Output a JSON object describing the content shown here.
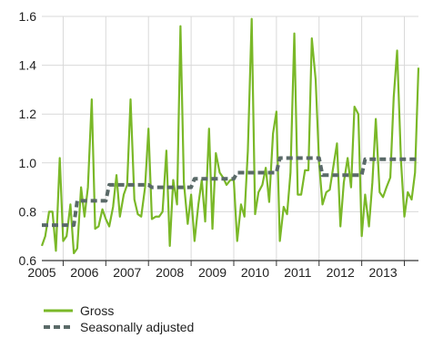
{
  "chart_data": {
    "type": "line",
    "title": "",
    "xlabel": "",
    "ylabel": "",
    "ylim": [
      0.6,
      1.6
    ],
    "y_ticks": [
      0.6,
      0.8,
      1.0,
      1.2,
      1.4,
      1.6
    ],
    "y_tick_labels": [
      "0.6",
      "0.8",
      "1.0",
      "1.2",
      "1.4",
      "1.6"
    ],
    "x_range": [
      2005,
      2013.83
    ],
    "x_ticks": [
      2005,
      2006,
      2007,
      2008,
      2009,
      2010,
      2011,
      2012,
      2013
    ],
    "x_tick_labels": [
      "2005",
      "2006",
      "2007",
      "2008",
      "2009",
      "2010",
      "2011",
      "2012",
      "2013"
    ],
    "grid": true,
    "legend_position": "bottom-left",
    "series": [
      {
        "name": "Gross",
        "color": "#7ab828",
        "style": "solid",
        "x": [
          2005.0,
          2005.08,
          2005.17,
          2005.25,
          2005.33,
          2005.42,
          2005.5,
          2005.58,
          2005.67,
          2005.75,
          2005.83,
          2005.92,
          2006.0,
          2006.08,
          2006.17,
          2006.25,
          2006.33,
          2006.42,
          2006.5,
          2006.58,
          2006.67,
          2006.75,
          2006.83,
          2006.92,
          2007.0,
          2007.08,
          2007.17,
          2007.25,
          2007.33,
          2007.42,
          2007.5,
          2007.58,
          2007.67,
          2007.75,
          2007.83,
          2007.92,
          2008.0,
          2008.08,
          2008.17,
          2008.25,
          2008.33,
          2008.42,
          2008.5,
          2008.58,
          2008.67,
          2008.75,
          2008.83,
          2008.92,
          2009.0,
          2009.08,
          2009.17,
          2009.25,
          2009.33,
          2009.42,
          2009.5,
          2009.58,
          2009.67,
          2009.75,
          2009.83,
          2009.92,
          2010.0,
          2010.08,
          2010.17,
          2010.25,
          2010.33,
          2010.42,
          2010.5,
          2010.58,
          2010.67,
          2010.75,
          2010.83,
          2010.92,
          2011.0,
          2011.08,
          2011.17,
          2011.25,
          2011.33,
          2011.42,
          2011.5,
          2011.58,
          2011.67,
          2011.75,
          2011.83,
          2011.92,
          2012.0,
          2012.08,
          2012.17,
          2012.25,
          2012.33,
          2012.42,
          2012.5,
          2012.58,
          2012.67,
          2012.75,
          2012.83,
          2012.92,
          2013.0,
          2013.08,
          2013.17,
          2013.25,
          2013.33,
          2013.42,
          2013.5,
          2013.58,
          2013.67,
          2013.75,
          2013.83
        ],
        "y": [
          0.66,
          0.7,
          0.8,
          0.8,
          0.64,
          1.02,
          0.68,
          0.7,
          0.83,
          0.63,
          0.65,
          0.9,
          0.78,
          0.9,
          1.26,
          0.73,
          0.74,
          0.81,
          0.77,
          0.74,
          0.82,
          0.95,
          0.78,
          0.87,
          0.91,
          1.26,
          0.85,
          0.79,
          0.78,
          0.9,
          1.14,
          0.77,
          0.78,
          0.78,
          0.8,
          1.05,
          0.66,
          0.93,
          0.83,
          1.56,
          0.92,
          0.75,
          0.87,
          0.68,
          0.83,
          0.93,
          0.76,
          1.14,
          0.73,
          1.04,
          0.96,
          0.94,
          0.91,
          0.93,
          0.93,
          0.68,
          0.83,
          0.78,
          1.05,
          1.59,
          0.79,
          0.88,
          0.91,
          0.98,
          0.84,
          1.12,
          1.21,
          0.68,
          0.82,
          0.79,
          0.96,
          1.53,
          0.87,
          0.87,
          0.97,
          0.97,
          1.51,
          1.34,
          1.0,
          0.83,
          0.88,
          0.89,
          0.98,
          1.08,
          0.74,
          0.92,
          1.02,
          0.9,
          1.23,
          1.2,
          0.7,
          0.87,
          0.74,
          0.92,
          1.18,
          0.88,
          0.86,
          0.9,
          0.94,
          1.27,
          1.46,
          1.01,
          0.78,
          0.88,
          0.85,
          0.96,
          1.39
        ]
      },
      {
        "name": "Seasonally adjusted",
        "color": "#5a6a68",
        "style": "dashed",
        "x": [
          2005.0,
          2005.75,
          2005.83,
          2006.5,
          2006.58,
          2007.5,
          2007.58,
          2008.5,
          2008.58,
          2009.5,
          2009.58,
          2010.5,
          2010.58,
          2011.5,
          2011.58,
          2012.5,
          2012.58,
          2013.83
        ],
        "y": [
          0.745,
          0.745,
          0.845,
          0.845,
          0.91,
          0.91,
          0.9,
          0.9,
          0.935,
          0.935,
          0.96,
          0.96,
          1.02,
          1.02,
          0.95,
          0.95,
          1.015,
          1.015
        ]
      }
    ]
  }
}
